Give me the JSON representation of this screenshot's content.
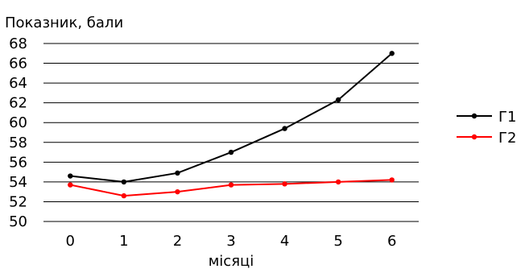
{
  "chart_data": {
    "type": "line",
    "title": "",
    "ylabel": "Показник, бали",
    "xlabel": "місяці",
    "categories": [
      "0",
      "1",
      "2",
      "3",
      "4",
      "5",
      "6"
    ],
    "y_ticks": [
      "50",
      "52",
      "54",
      "56",
      "58",
      "60",
      "62",
      "64",
      "66",
      "68"
    ],
    "ylim": [
      50,
      68
    ],
    "grid": "horizontal",
    "legend_position": "right",
    "series": [
      {
        "name": "Г1",
        "color": "#000000",
        "values": [
          54.6,
          54.0,
          54.9,
          57.0,
          59.4,
          62.3,
          67.0
        ]
      },
      {
        "name": "Г2",
        "color": "#ff0000",
        "values": [
          53.7,
          52.6,
          53.0,
          53.7,
          53.8,
          54.0,
          54.2
        ]
      }
    ]
  }
}
